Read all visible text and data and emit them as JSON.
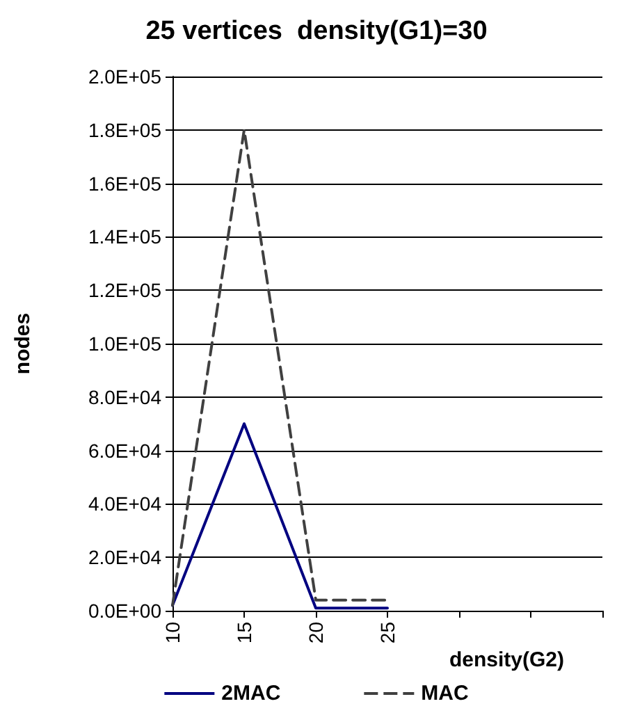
{
  "chart_data": {
    "type": "line",
    "title": "25 vertices  density(G1)=30",
    "xlabel": "density(G2)",
    "ylabel": "nodes",
    "categories": [
      "10",
      "15",
      "20",
      "25",
      null,
      null,
      null
    ],
    "series": [
      {
        "name": "2MAC",
        "color": "#000080",
        "line_style": "solid",
        "values": [
          2000,
          70000,
          1000,
          1000,
          null,
          null,
          null
        ]
      },
      {
        "name": "MAC",
        "color": "#404040",
        "line_style": "dashed",
        "values": [
          2000,
          180000,
          4000,
          4000,
          null,
          null,
          null
        ]
      }
    ],
    "ylim": [
      0,
      200000
    ],
    "yticks": [
      {
        "value": 0,
        "label": "0.0E+00"
      },
      {
        "value": 20000,
        "label": "2.0E+04"
      },
      {
        "value": 40000,
        "label": "4.0E+04"
      },
      {
        "value": 60000,
        "label": "6.0E+04"
      },
      {
        "value": 80000,
        "label": "8.0E+04"
      },
      {
        "value": 100000,
        "label": "1.0E+05"
      },
      {
        "value": 120000,
        "label": "1.2E+05"
      },
      {
        "value": 140000,
        "label": "1.4E+05"
      },
      {
        "value": 160000,
        "label": "1.6E+05"
      },
      {
        "value": 180000,
        "label": "1.8E+05"
      },
      {
        "value": 200000,
        "label": "2.0E+05"
      }
    ],
    "grid": "y",
    "legend": "bottom",
    "marker": "none"
  }
}
